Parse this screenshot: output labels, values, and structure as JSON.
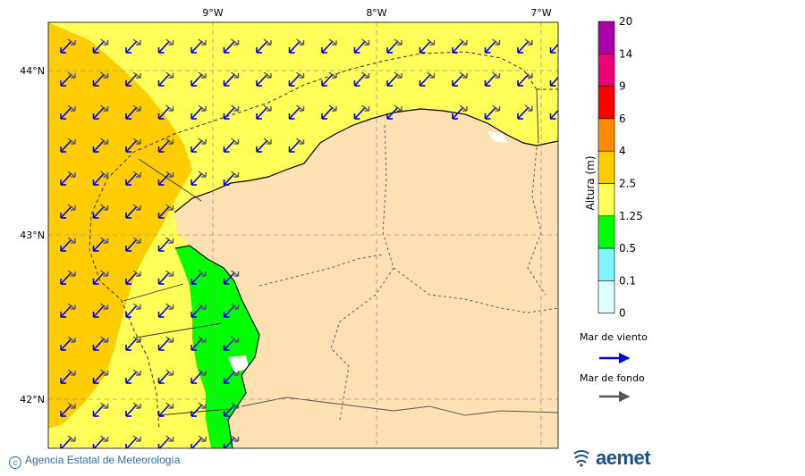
{
  "map": {
    "lon_ticks": [
      "9°W",
      "8°W",
      "7°W"
    ],
    "lat_ticks": [
      "44°N",
      "43°N",
      "42°N"
    ],
    "colors": {
      "sea_base": "#ffff5a",
      "sea_high": "#ffcc00",
      "sea_low": "#00ff00",
      "land": "#fde1b2",
      "gap": "#ffffff"
    }
  },
  "colorbar": {
    "title": "Altura (m)",
    "levels": [
      "20",
      "14",
      "9",
      "6",
      "4",
      "2.5",
      "1.25",
      "0.5",
      "0.1",
      "0"
    ],
    "colors": [
      "#aa00aa",
      "#ee0077",
      "#ff0000",
      "#ff8c00",
      "#ffcc00",
      "#ffff5a",
      "#00ff00",
      "#7ff5ff",
      "#ddffff"
    ]
  },
  "legend": {
    "wind_sea_label": "Mar de viento",
    "wind_sea_color": "#0000dd",
    "swell_label": "Mar de fondo",
    "swell_color": "#555555"
  },
  "footer": {
    "credit": "Agencia Estatal de Meteorología",
    "logo": "aemet"
  }
}
